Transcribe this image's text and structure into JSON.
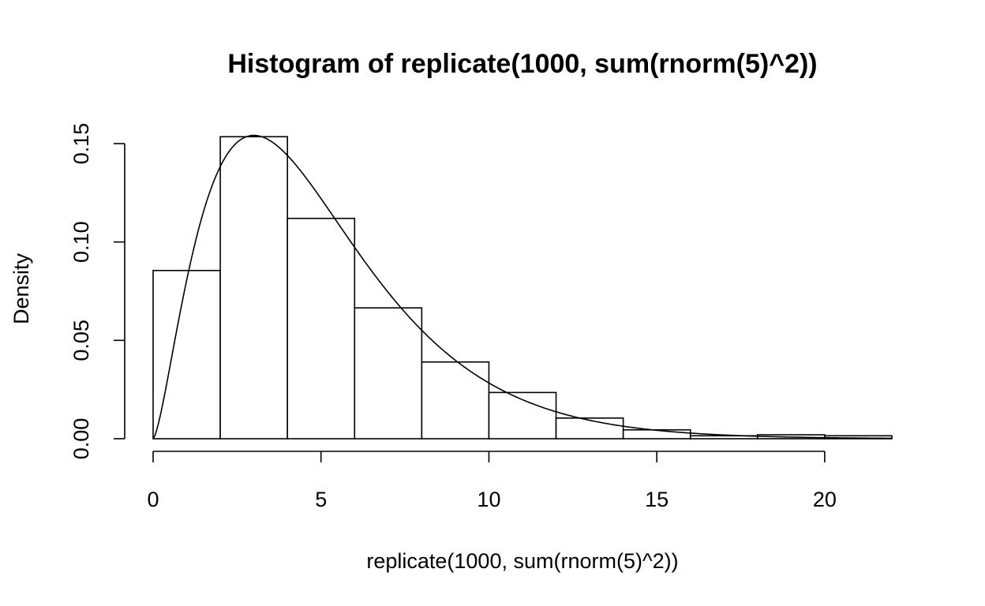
{
  "chart_data": {
    "type": "bar",
    "title": "Histogram of replicate(1000, sum(rnorm(5)^2))",
    "xlabel": "replicate(1000, sum(rnorm(5)^2))",
    "ylabel": "Density",
    "xlim": [
      0,
      22
    ],
    "ylim": [
      0,
      0.15
    ],
    "x_ticks": [
      0,
      5,
      10,
      15,
      20
    ],
    "x_tick_labels": [
      "0",
      "5",
      "10",
      "15",
      "20"
    ],
    "y_ticks": [
      0,
      0.05,
      0.1,
      0.15
    ],
    "y_tick_labels": [
      "0.00",
      "0.05",
      "0.10",
      "0.15"
    ],
    "bins": [
      {
        "start": 0,
        "end": 2,
        "density": 0.0855
      },
      {
        "start": 2,
        "end": 4,
        "density": 0.1535
      },
      {
        "start": 4,
        "end": 6,
        "density": 0.112
      },
      {
        "start": 6,
        "end": 8,
        "density": 0.0665
      },
      {
        "start": 8,
        "end": 10,
        "density": 0.039
      },
      {
        "start": 10,
        "end": 12,
        "density": 0.0235
      },
      {
        "start": 12,
        "end": 14,
        "density": 0.0105
      },
      {
        "start": 14,
        "end": 16,
        "density": 0.0045
      },
      {
        "start": 16,
        "end": 18,
        "density": 0.0015
      },
      {
        "start": 18,
        "end": 20,
        "density": 0.002
      },
      {
        "start": 20,
        "end": 22,
        "density": 0.0015
      }
    ],
    "overlay_curve": {
      "type": "line",
      "distribution": "chi-squared",
      "df": 5,
      "x_range": [
        0,
        22
      ]
    },
    "grid": false,
    "legend": "none"
  }
}
